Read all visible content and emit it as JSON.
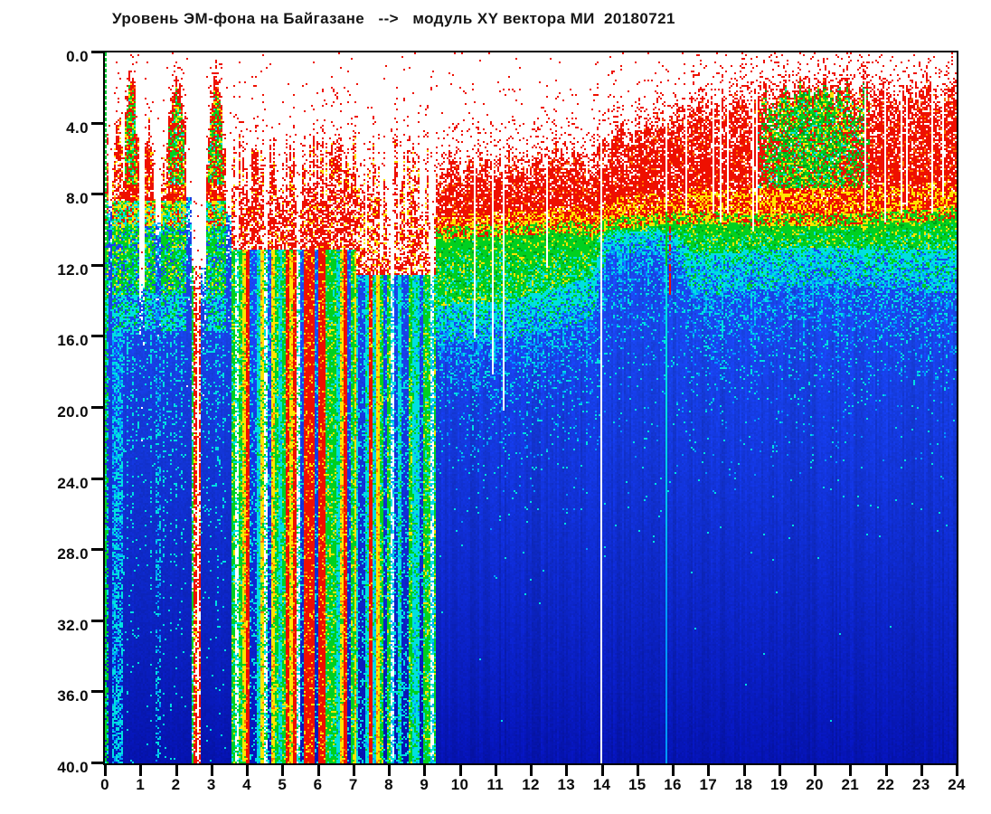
{
  "chart_data": {
    "type": "heatmap",
    "subtype": "spectrogram",
    "title": "Уровень ЭМ-фона на Байгазане   -->   модуль XY вектора МИ  20180721",
    "x_axis": {
      "min": 0,
      "max": 24,
      "step": 1,
      "ticks": [
        "0",
        "1",
        "2",
        "3",
        "4",
        "5",
        "6",
        "7",
        "8",
        "9",
        "10",
        "11",
        "12",
        "13",
        "14",
        "15",
        "16",
        "17",
        "18",
        "19",
        "20",
        "21",
        "22",
        "23",
        "24"
      ]
    },
    "y_axis": {
      "min": 0,
      "max": 40,
      "step": 4,
      "ticks": [
        "0.0",
        "4.0",
        "8.0",
        "12.0",
        "16.0",
        "20.0",
        "24.0",
        "28.0",
        "32.0",
        "36.0",
        "40.0"
      ]
    },
    "palette": {
      "white": "#ffffff",
      "red": "#ee1000",
      "orange": "#ff7300",
      "yellow": "#ffe400",
      "green": "#00d020",
      "green_dark": "#00a018",
      "cyan": "#00e0e0",
      "blue_light": "#0098ff",
      "blue": "#1946ec",
      "blue_deep": "#0513b2",
      "dot_green": "#00cc33",
      "axis": "#000000"
    },
    "timeline": [
      {
        "t0": 0.0,
        "t1": 0.1,
        "type": "burst",
        "top": 6.5,
        "density": 0.85,
        "core": false,
        "below": "green"
      },
      {
        "t0": 0.1,
        "t1": 0.2,
        "type": "gap",
        "whiteTo": 8.5,
        "speckle": 0.5,
        "below": "blue"
      },
      {
        "t0": 0.2,
        "t1": 0.5,
        "type": "burst",
        "top": 3.4,
        "density": 0.55,
        "core": false,
        "below": "cyan"
      },
      {
        "t0": 0.5,
        "t1": 0.95,
        "type": "burst",
        "top": 2.0,
        "density": 0.9,
        "core": true,
        "below": "blue"
      },
      {
        "t0": 0.95,
        "t1": 1.08,
        "type": "gap",
        "whiteTo": 13.0,
        "speckle": 0.3,
        "below": "blue"
      },
      {
        "t0": 1.08,
        "t1": 1.38,
        "type": "burst",
        "top": 4.0,
        "density": 0.7,
        "core": false,
        "below": "blue"
      },
      {
        "t0": 1.38,
        "t1": 1.56,
        "type": "gap",
        "whiteTo": 9.5,
        "speckle": 0.5,
        "below": "cyan"
      },
      {
        "t0": 1.56,
        "t1": 1.72,
        "type": "burst",
        "top": 5.0,
        "density": 0.5,
        "core": false,
        "below": "blue"
      },
      {
        "t0": 1.72,
        "t1": 2.28,
        "type": "burst",
        "top": 1.8,
        "density": 0.92,
        "core": true,
        "below": "blue"
      },
      {
        "t0": 2.28,
        "t1": 2.44,
        "type": "gap",
        "whiteTo": 8.0,
        "speckle": 0.4,
        "below": "blue"
      },
      {
        "t0": 2.44,
        "t1": 2.7,
        "type": "gap",
        "whiteTo": 12.0,
        "speckle": 0.9,
        "below": "streaks"
      },
      {
        "t0": 2.7,
        "t1": 2.82,
        "type": "gap",
        "whiteTo": 12.0,
        "speckle": 0.3,
        "below": "blue"
      },
      {
        "t0": 2.82,
        "t1": 3.38,
        "type": "burst",
        "top": 2.0,
        "density": 0.9,
        "core": true,
        "below": "blue"
      },
      {
        "t0": 3.38,
        "t1": 3.52,
        "type": "gap",
        "whiteTo": 9.0,
        "speckle": 0.4,
        "below": "blue"
      },
      {
        "t0": 3.52,
        "t1": 7.05,
        "type": "deep"
      },
      {
        "t0": 7.05,
        "t1": 9.32,
        "type": "mixed"
      },
      {
        "t0": 9.32,
        "t1": 24.01,
        "type": "continuous"
      }
    ],
    "profile": [
      {
        "t": 9.32,
        "top": 6.6,
        "red": 9.8,
        "green": 14.2,
        "cyan": 16.2
      },
      {
        "t": 11.0,
        "top": 6.3,
        "red": 9.6,
        "green": 14.0,
        "cyan": 16.2
      },
      {
        "t": 12.0,
        "top": 6.1,
        "red": 9.5,
        "green": 13.6,
        "cyan": 15.8
      },
      {
        "t": 13.0,
        "top": 5.7,
        "red": 9.4,
        "green": 13.0,
        "cyan": 15.4
      },
      {
        "t": 13.7,
        "top": 6.2,
        "red": 9.6,
        "green": 12.6,
        "cyan": 15.0
      },
      {
        "t": 14.1,
        "top": 5.0,
        "red": 9.2,
        "green": 10.1,
        "cyan": 11.4
      },
      {
        "t": 15.0,
        "top": 4.4,
        "red": 9.1,
        "green": 10.0,
        "cyan": 11.2
      },
      {
        "t": 16.0,
        "top": 3.6,
        "red": 8.9,
        "green": 10.0,
        "cyan": 11.4
      },
      {
        "t": 16.5,
        "top": 3.2,
        "red": 8.9,
        "green": 11.2,
        "cyan": 13.6
      },
      {
        "t": 17.0,
        "top": 2.9,
        "red": 8.9,
        "green": 11.3,
        "cyan": 13.6
      },
      {
        "t": 18.0,
        "top": 2.4,
        "red": 9.0,
        "green": 11.2,
        "cyan": 13.4
      },
      {
        "t": 19.0,
        "top": 2.0,
        "red": 9.0,
        "green": 11.0,
        "cyan": 13.2
      },
      {
        "t": 20.0,
        "top": 1.8,
        "red": 9.0,
        "green": 10.9,
        "cyan": 13.0
      },
      {
        "t": 21.0,
        "top": 2.0,
        "red": 9.0,
        "green": 10.9,
        "cyan": 13.0
      },
      {
        "t": 22.0,
        "top": 2.3,
        "red": 8.9,
        "green": 11.0,
        "cyan": 13.2
      },
      {
        "t": 23.0,
        "top": 2.2,
        "red": 8.8,
        "green": 11.0,
        "cyan": 13.4
      },
      {
        "t": 24.0,
        "top": 2.6,
        "red": 8.6,
        "green": 11.0,
        "cyan": 13.5
      }
    ],
    "green_core": {
      "t0": 18.35,
      "t1": 21.55,
      "bottom": 7.6
    },
    "white_lines": [
      {
        "t": 10.38,
        "v0": 6.0,
        "v1": 16.0,
        "w": 1
      },
      {
        "t": 10.92,
        "v0": 5.5,
        "v1": 18.0,
        "w": 1
      },
      {
        "t": 11.22,
        "v0": 5.5,
        "v1": 20.0,
        "w": 1
      },
      {
        "t": 12.45,
        "v0": 6.0,
        "v1": 12.0,
        "w": 1
      },
      {
        "t": 13.97,
        "v0": 0.0,
        "v1": 40.0,
        "w": 1
      },
      {
        "t": 15.8,
        "v0": 3.5,
        "v1": 9.0,
        "w": 1
      },
      {
        "t": 16.35,
        "v0": 2.5,
        "v1": 9.0,
        "w": 1
      },
      {
        "t": 17.1,
        "v0": 2.0,
        "v1": 9.0,
        "w": 1
      },
      {
        "t": 17.3,
        "v0": 2.0,
        "v1": 9.5,
        "w": 1
      },
      {
        "t": 17.55,
        "v0": 1.8,
        "v1": 9.0,
        "w": 1
      },
      {
        "t": 18.23,
        "v0": 1.8,
        "v1": 10.0,
        "w": 1
      },
      {
        "t": 18.35,
        "v0": 2.0,
        "v1": 9.0,
        "w": 1
      },
      {
        "t": 21.38,
        "v0": 2.0,
        "v1": 9.0,
        "w": 1
      },
      {
        "t": 21.95,
        "v0": 1.8,
        "v1": 9.5,
        "w": 1
      },
      {
        "t": 22.42,
        "v0": 2.0,
        "v1": 9.0,
        "w": 1
      },
      {
        "t": 22.55,
        "v0": 2.2,
        "v1": 8.5,
        "w": 1
      },
      {
        "t": 23.28,
        "v0": 1.8,
        "v1": 9.0,
        "w": 1
      },
      {
        "t": 23.6,
        "v0": 2.2,
        "v1": 8.0,
        "w": 1
      }
    ],
    "green_line": {
      "t": 15.8,
      "v0": 9.0,
      "v1": 40.0
    },
    "red_line": {
      "t": 15.9,
      "v0": 4.5,
      "v1": 13.5
    },
    "left_edge_dotted_green": true
  }
}
